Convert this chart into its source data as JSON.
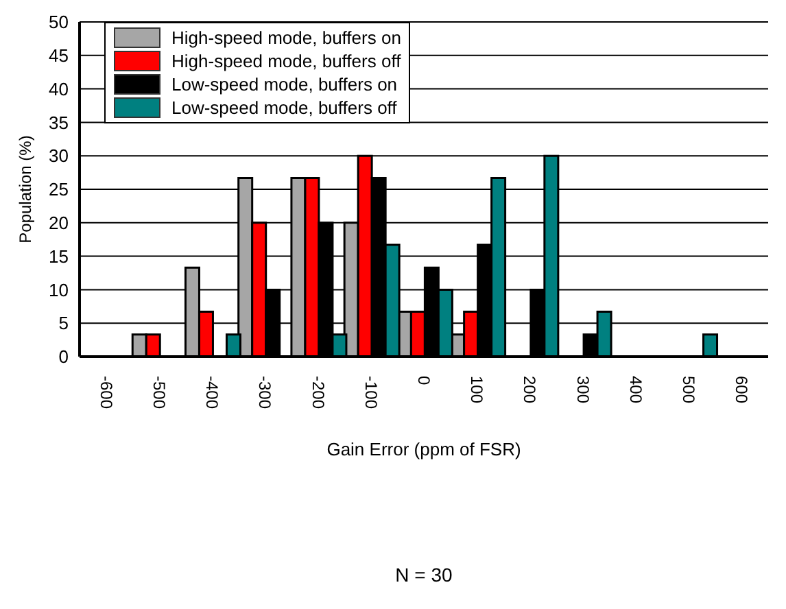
{
  "chart_data": {
    "type": "bar",
    "xlabel": "Gain Error (ppm of FSR)",
    "ylabel": "Population (%)",
    "annotations": [
      "N = 30"
    ],
    "categories": [
      "-600",
      "-500",
      "-400",
      "-300",
      "-200",
      "-100",
      "0",
      "100",
      "200",
      "300",
      "400",
      "500",
      "600"
    ],
    "series": [
      {
        "name": "High-speed mode, buffers on",
        "color": "#a6a6a6",
        "values": [
          0,
          3.3,
          13.3,
          26.7,
          26.7,
          20,
          6.7,
          3.3,
          0,
          0,
          0,
          0,
          0
        ]
      },
      {
        "name": "High-speed mode, buffers off",
        "color": "#ff0000",
        "values": [
          0,
          3.3,
          6.7,
          20,
          26.7,
          30,
          6.7,
          6.7,
          0,
          0,
          0,
          0,
          0
        ]
      },
      {
        "name": "Low-speed mode, buffers on",
        "color": "#000000",
        "values": [
          0,
          0,
          0,
          10,
          20,
          26.7,
          13.3,
          16.7,
          10,
          3.3,
          0,
          0,
          0
        ]
      },
      {
        "name": "Low-speed mode, buffers off",
        "color": "#008080",
        "values": [
          0,
          0,
          3.3,
          0,
          3.3,
          16.7,
          10,
          26.7,
          30,
          6.7,
          0,
          3.3,
          0
        ]
      }
    ],
    "ylim": [
      0,
      50
    ],
    "yticks": [
      0,
      5,
      10,
      15,
      20,
      25,
      30,
      35,
      40,
      45,
      50
    ],
    "grid": "y",
    "legend": "top left"
  }
}
